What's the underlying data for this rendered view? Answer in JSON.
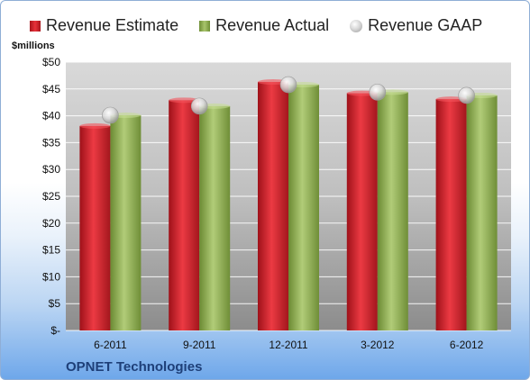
{
  "chart_data": {
    "type": "bar",
    "title": "",
    "ylabel": "$millions",
    "xlabel": "",
    "company": "OPNET Technologies",
    "categories": [
      "6-2011",
      "9-2011",
      "12-2011",
      "3-2012",
      "6-2012"
    ],
    "series": [
      {
        "name": "Revenue Estimate",
        "type": "bar",
        "color": "#d0202a",
        "values": [
          38.1,
          42.9,
          46.3,
          44.2,
          43.1
        ]
      },
      {
        "name": "Revenue Actual",
        "type": "bar",
        "color": "#8fae52",
        "values": [
          40.1,
          41.8,
          45.8,
          44.4,
          43.8
        ]
      },
      {
        "name": "Revenue GAAP",
        "type": "marker",
        "color": "#c8c8c8",
        "values": [
          40.1,
          41.8,
          45.8,
          44.4,
          43.8
        ]
      }
    ],
    "ylim": [
      0,
      50
    ],
    "y_ticks": [
      "$-",
      "$5",
      "$10",
      "$15",
      "$20",
      "$25",
      "$30",
      "$35",
      "$40",
      "$45",
      "$50"
    ],
    "grid": true,
    "legend": "top"
  }
}
